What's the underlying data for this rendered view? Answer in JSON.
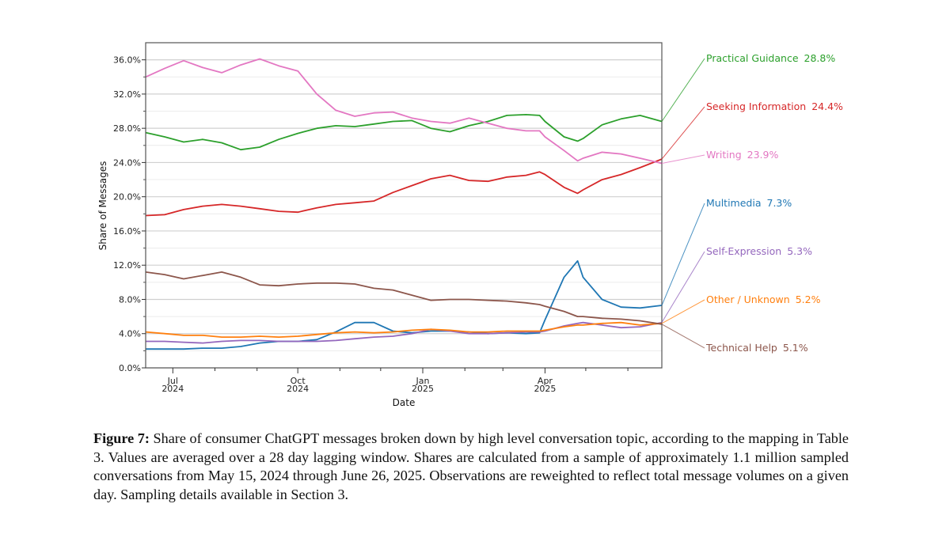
{
  "chart_data": {
    "type": "line",
    "title": "",
    "xlabel": "Date",
    "ylabel": "Share of Messages",
    "xlim": [
      "2024-06-11",
      "2025-06-26"
    ],
    "ylim": [
      0,
      38
    ],
    "y_ticks": [
      "0.0%",
      "4.0%",
      "8.0%",
      "12.0%",
      "16.0%",
      "20.0%",
      "24.0%",
      "28.0%",
      "32.0%",
      "36.0%"
    ],
    "y_tick_values": [
      0,
      4,
      8,
      12,
      16,
      20,
      24,
      28,
      32,
      36
    ],
    "x_ticks": [
      {
        "date": "2024-07-01",
        "month": "Jul",
        "year": "2024"
      },
      {
        "date": "2024-10-01",
        "month": "Oct",
        "year": "2024"
      },
      {
        "date": "2025-01-01",
        "month": "Jan",
        "year": "2025"
      },
      {
        "date": "2025-04-01",
        "month": "Apr",
        "year": "2025"
      }
    ],
    "x_minor_ticks": [
      "2024-08-01",
      "2024-09-01",
      "2024-11-01",
      "2024-12-01",
      "2025-02-01",
      "2025-03-01",
      "2025-05-01",
      "2025-06-01"
    ],
    "grid": true,
    "legend": "right-end labels",
    "x": [
      "2024-06-11",
      "2024-06-25",
      "2024-07-09",
      "2024-07-23",
      "2024-08-06",
      "2024-08-20",
      "2024-09-03",
      "2024-09-17",
      "2024-10-01",
      "2024-10-15",
      "2024-10-29",
      "2024-11-12",
      "2024-11-26",
      "2024-12-10",
      "2024-12-24",
      "2025-01-07",
      "2025-01-21",
      "2025-02-04",
      "2025-02-18",
      "2025-03-04",
      "2025-03-18",
      "2025-03-28",
      "2025-04-01",
      "2025-04-15",
      "2025-04-25",
      "2025-04-29",
      "2025-05-13",
      "2025-05-27",
      "2025-06-10",
      "2025-06-26"
    ],
    "series": [
      {
        "name": "Practical Guidance",
        "final_label": "28.8%",
        "color": "#2ca02c",
        "values": [
          27.5,
          27.0,
          26.4,
          26.7,
          26.3,
          25.5,
          25.8,
          26.7,
          27.4,
          28.0,
          28.3,
          28.2,
          28.5,
          28.8,
          28.9,
          28.0,
          27.6,
          28.3,
          28.8,
          29.5,
          29.6,
          29.5,
          28.8,
          27.0,
          26.5,
          26.8,
          28.4,
          29.1,
          29.5,
          28.8
        ]
      },
      {
        "name": "Seeking Information",
        "final_label": "24.4%",
        "color": "#d62728",
        "values": [
          17.8,
          17.9,
          18.5,
          18.9,
          19.1,
          18.9,
          18.6,
          18.3,
          18.2,
          18.7,
          19.1,
          19.3,
          19.5,
          20.5,
          21.3,
          22.1,
          22.5,
          21.9,
          21.8,
          22.3,
          22.5,
          22.9,
          22.6,
          21.1,
          20.4,
          20.8,
          22.0,
          22.6,
          23.4,
          24.4
        ]
      },
      {
        "name": "Writing",
        "final_label": "23.9%",
        "color": "#e377c2",
        "values": [
          34.0,
          35.0,
          35.9,
          35.1,
          34.5,
          35.4,
          36.1,
          35.3,
          34.7,
          32.0,
          30.1,
          29.4,
          29.8,
          29.9,
          29.2,
          28.8,
          28.6,
          29.2,
          28.6,
          28.0,
          27.7,
          27.7,
          27.0,
          25.4,
          24.2,
          24.5,
          25.2,
          25.0,
          24.5,
          23.9
        ]
      },
      {
        "name": "Multimedia",
        "final_label": "7.3%",
        "color": "#1f77b4",
        "values": [
          2.2,
          2.2,
          2.2,
          2.3,
          2.3,
          2.5,
          2.9,
          3.1,
          3.1,
          3.3,
          4.2,
          5.3,
          5.3,
          4.3,
          4.1,
          4.3,
          4.3,
          4.2,
          4.0,
          4.1,
          4.0,
          4.1,
          5.6,
          10.6,
          12.5,
          10.6,
          8.0,
          7.1,
          7.0,
          7.3
        ]
      },
      {
        "name": "Self-Expression",
        "final_label": "5.3%",
        "color": "#9467bd",
        "values": [
          3.1,
          3.1,
          3.0,
          2.9,
          3.1,
          3.2,
          3.2,
          3.1,
          3.1,
          3.1,
          3.2,
          3.4,
          3.6,
          3.7,
          4.0,
          4.5,
          4.3,
          4.0,
          4.0,
          4.1,
          4.2,
          4.2,
          4.3,
          4.9,
          5.2,
          5.3,
          5.0,
          4.7,
          4.8,
          5.3
        ]
      },
      {
        "name": "Other / Unknown",
        "final_label": "5.2%",
        "color": "#ff7f0e",
        "values": [
          4.2,
          4.0,
          3.8,
          3.8,
          3.6,
          3.6,
          3.7,
          3.6,
          3.7,
          3.9,
          4.1,
          4.2,
          4.1,
          4.2,
          4.4,
          4.5,
          4.4,
          4.2,
          4.2,
          4.3,
          4.3,
          4.3,
          4.4,
          4.8,
          5.0,
          5.0,
          5.2,
          5.3,
          5.0,
          5.2
        ]
      },
      {
        "name": "Technical Help",
        "final_label": "5.1%",
        "color": "#8c564b",
        "values": [
          11.2,
          10.9,
          10.4,
          10.8,
          11.2,
          10.6,
          9.7,
          9.6,
          9.8,
          9.9,
          9.9,
          9.8,
          9.3,
          9.1,
          8.5,
          7.9,
          8.0,
          8.0,
          7.9,
          7.8,
          7.6,
          7.4,
          7.2,
          6.6,
          6.0,
          6.0,
          5.8,
          5.7,
          5.5,
          5.1
        ]
      }
    ]
  },
  "caption": {
    "label": "Figure 7:",
    "text": " Share of consumer ChatGPT messages broken down by high level conversation topic, according to the mapping in Table 3. Values are averaged over a 28 day lagging window. Shares are calculated from a sample of approximately 1.1 million sampled conversations from May 15, 2024 through June 26, 2025. Observations are reweighted to reflect total message volumes on a given day. Sampling details available in Section 3."
  }
}
